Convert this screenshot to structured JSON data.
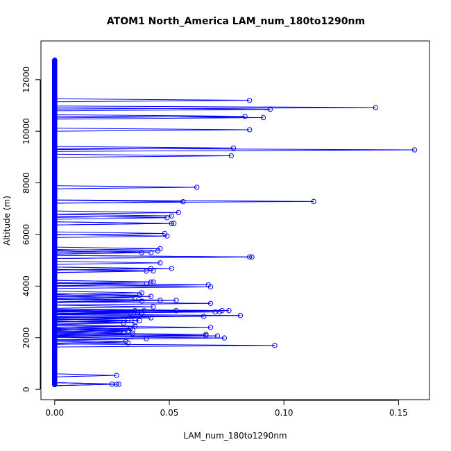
{
  "chart_data": {
    "type": "scatter",
    "title": "ATOM1 North_America LAM_num_180to1290nm",
    "xlabel": "LAM_num_180to1290nm",
    "ylabel": "Altitude (m)",
    "xlim": [
      -0.006,
      0.1635
    ],
    "ylim": [
      -400,
      13500
    ],
    "xticks": [
      0.0,
      0.05,
      0.1,
      0.15
    ],
    "xtick_labels": [
      "0.00",
      "0.05",
      "0.10",
      "0.15"
    ],
    "yticks": [
      0,
      2000,
      4000,
      6000,
      8000,
      10000,
      12000
    ],
    "ytick_labels": [
      "0",
      "2000",
      "4000",
      "6000",
      "8000",
      "10000",
      "12000"
    ],
    "grid": false,
    "colors": {
      "series": "#0000ff",
      "axis": "#000000"
    },
    "series": [
      {
        "values_description": "non-zero measurements",
        "points": [
          {
            "x": 0.085,
            "y": 11200
          },
          {
            "x": 0.094,
            "y": 10850
          },
          {
            "x": 0.14,
            "y": 10920
          },
          {
            "x": 0.083,
            "y": 10580
          },
          {
            "x": 0.091,
            "y": 10530
          },
          {
            "x": 0.085,
            "y": 10060
          },
          {
            "x": 0.157,
            "y": 9280
          },
          {
            "x": 0.078,
            "y": 9350
          },
          {
            "x": 0.077,
            "y": 9050
          },
          {
            "x": 0.062,
            "y": 7830
          },
          {
            "x": 0.113,
            "y": 7280
          },
          {
            "x": 0.056,
            "y": 7270
          },
          {
            "x": 0.054,
            "y": 6850
          },
          {
            "x": 0.051,
            "y": 6720
          },
          {
            "x": 0.049,
            "y": 6650
          },
          {
            "x": 0.052,
            "y": 6430
          },
          {
            "x": 0.051,
            "y": 6430
          },
          {
            "x": 0.048,
            "y": 6040
          },
          {
            "x": 0.049,
            "y": 5940
          },
          {
            "x": 0.046,
            "y": 5450
          },
          {
            "x": 0.045,
            "y": 5360
          },
          {
            "x": 0.038,
            "y": 5300
          },
          {
            "x": 0.042,
            "y": 5300
          },
          {
            "x": 0.086,
            "y": 5130
          },
          {
            "x": 0.085,
            "y": 5130
          },
          {
            "x": 0.046,
            "y": 4900
          },
          {
            "x": 0.051,
            "y": 4680
          },
          {
            "x": 0.042,
            "y": 4680
          },
          {
            "x": 0.043,
            "y": 4590
          },
          {
            "x": 0.04,
            "y": 4580
          },
          {
            "x": 0.043,
            "y": 4160
          },
          {
            "x": 0.042,
            "y": 4160
          },
          {
            "x": 0.04,
            "y": 4080
          },
          {
            "x": 0.067,
            "y": 4050
          },
          {
            "x": 0.068,
            "y": 3970
          },
          {
            "x": 0.038,
            "y": 3740
          },
          {
            "x": 0.037,
            "y": 3650
          },
          {
            "x": 0.042,
            "y": 3600
          },
          {
            "x": 0.035,
            "y": 3550
          },
          {
            "x": 0.053,
            "y": 3450
          },
          {
            "x": 0.046,
            "y": 3450
          },
          {
            "x": 0.038,
            "y": 3420
          },
          {
            "x": 0.068,
            "y": 3330
          },
          {
            "x": 0.043,
            "y": 3200
          },
          {
            "x": 0.076,
            "y": 3050
          },
          {
            "x": 0.073,
            "y": 3050
          },
          {
            "x": 0.072,
            "y": 3000
          },
          {
            "x": 0.07,
            "y": 3000
          },
          {
            "x": 0.053,
            "y": 3050
          },
          {
            "x": 0.039,
            "y": 3050
          },
          {
            "x": 0.035,
            "y": 3050
          },
          {
            "x": 0.036,
            "y": 2980
          },
          {
            "x": 0.038,
            "y": 2960
          },
          {
            "x": 0.033,
            "y": 2950
          },
          {
            "x": 0.081,
            "y": 2860
          },
          {
            "x": 0.065,
            "y": 2830
          },
          {
            "x": 0.042,
            "y": 2770
          },
          {
            "x": 0.035,
            "y": 2750
          },
          {
            "x": 0.032,
            "y": 2680
          },
          {
            "x": 0.037,
            "y": 2660
          },
          {
            "x": 0.035,
            "y": 2590
          },
          {
            "x": 0.03,
            "y": 2570
          },
          {
            "x": 0.035,
            "y": 2450
          },
          {
            "x": 0.068,
            "y": 2400
          },
          {
            "x": 0.033,
            "y": 2350
          },
          {
            "x": 0.034,
            "y": 2300
          },
          {
            "x": 0.032,
            "y": 2260
          },
          {
            "x": 0.03,
            "y": 2210
          },
          {
            "x": 0.034,
            "y": 2150
          },
          {
            "x": 0.066,
            "y": 2130
          },
          {
            "x": 0.066,
            "y": 2080
          },
          {
            "x": 0.071,
            "y": 2070
          },
          {
            "x": 0.074,
            "y": 1990
          },
          {
            "x": 0.04,
            "y": 1960
          },
          {
            "x": 0.031,
            "y": 1850
          },
          {
            "x": 0.032,
            "y": 1800
          },
          {
            "x": 0.096,
            "y": 1700
          },
          {
            "x": 0.027,
            "y": 540
          },
          {
            "x": 0.025,
            "y": 200
          },
          {
            "x": 0.027,
            "y": 200
          },
          {
            "x": 0.028,
            "y": 200
          }
        ],
        "zero_points_y_range": [
          180,
          12760
        ]
      }
    ]
  }
}
